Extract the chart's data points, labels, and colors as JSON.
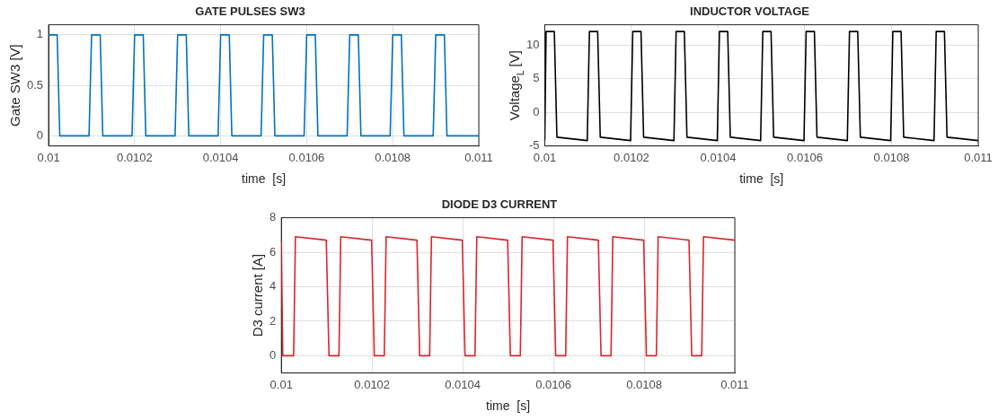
{
  "chart_data": [
    {
      "type": "line",
      "title": "GATE PULSES SW3",
      "xlabel": "time  [s]",
      "ylabel": "Gate SW3 [V]",
      "xlim": [
        0.01,
        0.011
      ],
      "ylim": [
        -0.1,
        1.1
      ],
      "xticks": [
        0.01,
        0.0102,
        0.0104,
        0.0106,
        0.0108,
        0.011
      ],
      "yticks": [
        0,
        0.5,
        1
      ],
      "grid": true,
      "series": [
        {
          "color": "#0072bd",
          "x": [
            0.01,
            0.01002,
            0.010026,
            0.010094,
            0.0101,
            0.01012,
            0.010126,
            0.010194,
            0.0102,
            0.01022,
            0.010226,
            0.010294,
            0.0103,
            0.01032,
            0.010326,
            0.010394,
            0.0104,
            0.01042,
            0.010426,
            0.010494,
            0.0105,
            0.01052,
            0.010526,
            0.010594,
            0.0106,
            0.01062,
            0.010626,
            0.010694,
            0.0107,
            0.01072,
            0.010726,
            0.010794,
            0.0108,
            0.01082,
            0.010826,
            0.010894,
            0.0109,
            0.01092,
            0.010926,
            0.011
          ],
          "values": [
            1,
            1,
            0,
            0,
            1,
            1,
            0,
            0,
            1,
            1,
            0,
            0,
            1,
            1,
            0,
            0,
            1,
            1,
            0,
            0,
            1,
            1,
            0,
            0,
            1,
            1,
            0,
            0,
            1,
            1,
            0,
            0,
            1,
            1,
            0,
            0,
            1,
            1,
            0,
            0
          ]
        }
      ]
    },
    {
      "type": "line",
      "title": "INDUCTOR VOLTAGE",
      "xlabel": "time  [s]",
      "ylabel": "Voltage$_{L}$ [V]",
      "xlim": [
        0.01,
        0.011
      ],
      "ylim": [
        -5,
        13
      ],
      "xticks": [
        0.01,
        0.0102,
        0.0104,
        0.0106,
        0.0108,
        0.011
      ],
      "yticks": [
        -5,
        0,
        5,
        10
      ],
      "grid": true,
      "series": [
        {
          "color": "#000000",
          "x": [
            0.01,
            0.010003,
            0.010022,
            0.010028,
            0.010098,
            0.010103,
            0.010122,
            0.010128,
            0.010198,
            0.010203,
            0.010222,
            0.010228,
            0.010298,
            0.010303,
            0.010322,
            0.010328,
            0.010398,
            0.010403,
            0.010422,
            0.010428,
            0.010498,
            0.010503,
            0.010522,
            0.010528,
            0.010598,
            0.010603,
            0.010622,
            0.010628,
            0.010698,
            0.010703,
            0.010722,
            0.010728,
            0.010798,
            0.010803,
            0.010822,
            0.010828,
            0.010898,
            0.010903,
            0.010922,
            0.010928,
            0.011
          ],
          "values": [
            -4.2,
            12,
            12,
            -3.7,
            -4.2,
            12,
            12,
            -3.7,
            -4.2,
            12,
            12,
            -3.7,
            -4.2,
            12,
            12,
            -3.7,
            -4.2,
            12,
            12,
            -3.7,
            -4.2,
            12,
            12,
            -3.7,
            -4.2,
            12,
            12,
            -3.7,
            -4.2,
            12,
            12,
            -3.7,
            -4.2,
            12,
            12,
            -3.7,
            -4.2,
            12,
            12,
            -3.7,
            -4.2
          ]
        }
      ]
    },
    {
      "type": "line",
      "title": "DIODE D3 CURRENT",
      "xlabel": "time  [s]",
      "ylabel": "D3 current [A]",
      "xlim": [
        0.01,
        0.011
      ],
      "ylim": [
        -1,
        8
      ],
      "xticks": [
        0.01,
        0.0102,
        0.0104,
        0.0106,
        0.0108,
        0.011
      ],
      "yticks": [
        0,
        2,
        4,
        6,
        8
      ],
      "grid": true,
      "series": [
        {
          "color": "#d9262b",
          "x": [
            0.01,
            0.010003,
            0.010027,
            0.010031,
            0.010099,
            0.010105,
            0.010127,
            0.010131,
            0.010199,
            0.010205,
            0.010227,
            0.010231,
            0.010299,
            0.010305,
            0.010327,
            0.010331,
            0.010399,
            0.010405,
            0.010427,
            0.010431,
            0.010499,
            0.010505,
            0.010527,
            0.010531,
            0.010599,
            0.010605,
            0.010627,
            0.010631,
            0.010699,
            0.010705,
            0.010727,
            0.010731,
            0.010799,
            0.010805,
            0.010827,
            0.010831,
            0.010899,
            0.010905,
            0.010927,
            0.010931,
            0.011
          ],
          "values": [
            6.6,
            0,
            0,
            6.9,
            6.7,
            0,
            0,
            6.9,
            6.7,
            0,
            0,
            6.9,
            6.7,
            0,
            0,
            6.9,
            6.7,
            0,
            0,
            6.9,
            6.7,
            0,
            0,
            6.9,
            6.7,
            0,
            0,
            6.9,
            6.7,
            0,
            0,
            6.9,
            6.7,
            0,
            0,
            6.9,
            6.7,
            0,
            0,
            6.9,
            6.7
          ]
        }
      ]
    }
  ]
}
